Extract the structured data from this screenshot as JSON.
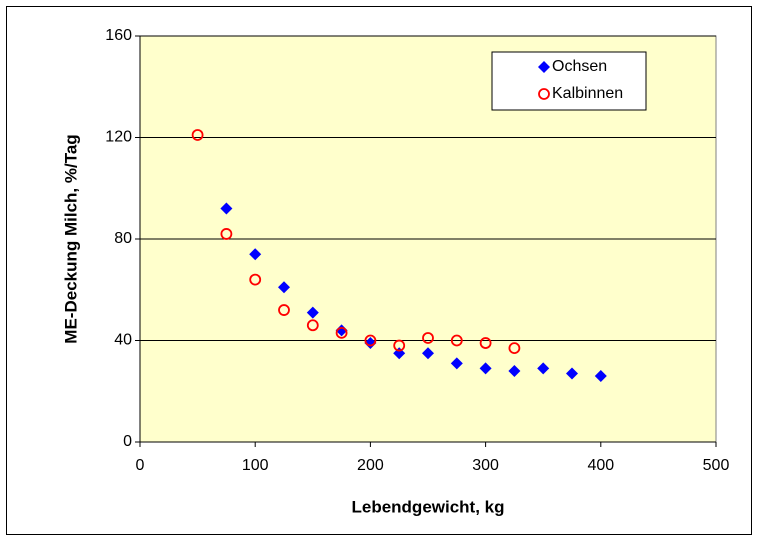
{
  "chart_data": {
    "type": "scatter",
    "xlabel": "Lebendgewicht, kg",
    "ylabel": "ME-Deckung Milch, %/Tag",
    "xlim": [
      0,
      500
    ],
    "xticks": [
      0,
      100,
      200,
      300,
      400,
      500
    ],
    "ylim": [
      0,
      160
    ],
    "yticks": [
      0,
      40,
      80,
      120,
      160
    ],
    "grid": true,
    "legend": "upper-right",
    "series": [
      {
        "name": "Ochsen",
        "color": "#0000ff",
        "marker": "diamond",
        "x": [
          75,
          100,
          125,
          150,
          175,
          200,
          225,
          250,
          275,
          300,
          325,
          350,
          375,
          400
        ],
        "values": [
          92,
          74,
          61,
          51,
          44,
          39,
          35,
          35,
          31,
          29,
          28,
          29,
          27,
          26
        ]
      },
      {
        "name": "Kalbinnen",
        "color": "#ff0000",
        "marker": "open-circle",
        "x": [
          50,
          75,
          100,
          125,
          150,
          175,
          200,
          225,
          250,
          275,
          300,
          325
        ],
        "values": [
          121,
          82,
          64,
          52,
          46,
          43,
          40,
          38,
          41,
          40,
          39,
          37
        ]
      }
    ]
  }
}
